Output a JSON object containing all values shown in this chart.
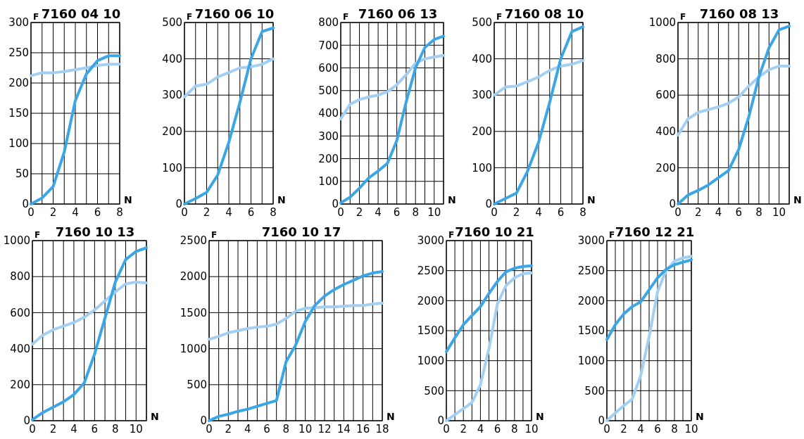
{
  "chart_data": [
    {
      "type": "line",
      "title": "7160 04 10",
      "xlabel": "N",
      "ylabel": "F",
      "x": [
        0,
        1,
        2,
        3,
        4,
        5,
        6,
        7,
        8
      ],
      "xlim": [
        0,
        8
      ],
      "xticks": [
        0,
        {
          "value": 1,
          "label": null
        },
        2,
        {
          "value": 3,
          "label": null
        },
        4,
        {
          "value": 5,
          "label": null
        },
        6,
        {
          "value": 7,
          "label": null
        },
        8
      ],
      "ylim": [
        0,
        300
      ],
      "yticks": [
        0,
        50,
        100,
        150,
        200,
        250,
        300
      ],
      "grid": true,
      "marker": "none",
      "series": [
        {
          "color": "#a3cff2",
          "values": [
            212,
            217,
            217,
            219,
            222,
            225,
            229,
            231,
            231
          ]
        },
        {
          "color": "#3aa6e6",
          "values": [
            0,
            10,
            29,
            86,
            171,
            215,
            237,
            245,
            245
          ]
        }
      ]
    },
    {
      "type": "line",
      "title": "7160 06 10",
      "xlabel": "N",
      "ylabel": "F",
      "x": [
        0,
        1,
        2,
        3,
        4,
        5,
        6,
        7,
        8
      ],
      "xlim": [
        0,
        8
      ],
      "xticks": [
        0,
        {
          "value": 1,
          "label": null
        },
        2,
        {
          "value": 3,
          "label": null
        },
        4,
        {
          "value": 5,
          "label": null
        },
        6,
        {
          "value": 7,
          "label": null
        },
        8
      ],
      "ylim": [
        0,
        500
      ],
      "yticks": [
        0,
        100,
        200,
        300,
        400,
        500
      ],
      "grid": true,
      "marker": "none",
      "series": [
        {
          "color": "#a3cff2",
          "values": [
            295,
            325,
            330,
            350,
            362,
            375,
            378,
            385,
            400
          ]
        },
        {
          "color": "#3aa6e6",
          "values": [
            0,
            15,
            32,
            80,
            170,
            280,
            400,
            475,
            485
          ]
        }
      ]
    },
    {
      "type": "line",
      "title": "7160 06 13",
      "xlabel": "N",
      "ylabel": "F",
      "x": [
        0,
        1,
        2,
        3,
        4,
        5,
        6,
        7,
        8,
        9,
        10,
        11
      ],
      "xlim": [
        0,
        11
      ],
      "xticks": [
        0,
        {
          "value": 1,
          "label": null
        },
        2,
        {
          "value": 3,
          "label": null
        },
        4,
        {
          "value": 5,
          "label": null
        },
        6,
        {
          "value": 7,
          "label": null
        },
        8,
        {
          "value": 9,
          "label": null
        },
        10,
        {
          "value": 11,
          "label": null
        }
      ],
      "ylim": [
        0,
        800
      ],
      "yticks": [
        0,
        100,
        200,
        300,
        400,
        500,
        600,
        700,
        800
      ],
      "grid": true,
      "marker": "none",
      "series": [
        {
          "color": "#a3cff2",
          "values": [
            375,
            440,
            460,
            472,
            480,
            495,
            525,
            570,
            620,
            640,
            648,
            655
          ]
        },
        {
          "color": "#3aa6e6",
          "values": [
            5,
            30,
            70,
            115,
            145,
            180,
            280,
            450,
            600,
            690,
            725,
            740
          ]
        }
      ]
    },
    {
      "type": "line",
      "title": "7160 08 10",
      "xlabel": "N",
      "ylabel": "F",
      "x": [
        0,
        1,
        2,
        3,
        4,
        5,
        6,
        7,
        8
      ],
      "xlim": [
        0,
        8
      ],
      "xticks": [
        0,
        {
          "value": 1,
          "label": null
        },
        2,
        {
          "value": 3,
          "label": null
        },
        4,
        {
          "value": 5,
          "label": null
        },
        6,
        {
          "value": 7,
          "label": null
        },
        8
      ],
      "ylim": [
        0,
        500
      ],
      "yticks": [
        0,
        100,
        200,
        300,
        400,
        500
      ],
      "grid": true,
      "marker": "none",
      "series": [
        {
          "color": "#a3cff2",
          "values": [
            300,
            322,
            325,
            337,
            350,
            368,
            380,
            385,
            395
          ]
        },
        {
          "color": "#3aa6e6",
          "values": [
            0,
            15,
            30,
            90,
            170,
            280,
            400,
            475,
            488
          ]
        }
      ]
    },
    {
      "type": "line",
      "title": "7160 08 13",
      "xlabel": "N",
      "ylabel": "F",
      "x": [
        0,
        1,
        2,
        3,
        4,
        5,
        6,
        7,
        8,
        9,
        10,
        11
      ],
      "xlim": [
        0,
        11
      ],
      "xticks": [
        0,
        {
          "value": 1,
          "label": null
        },
        2,
        {
          "value": 3,
          "label": null
        },
        4,
        {
          "value": 5,
          "label": null
        },
        6,
        {
          "value": 7,
          "label": null
        },
        8,
        {
          "value": 9,
          "label": null
        },
        10,
        {
          "value": 11,
          "label": null
        }
      ],
      "ylim": [
        0,
        1000
      ],
      "yticks": [
        0,
        200,
        400,
        600,
        800,
        1000
      ],
      "grid": true,
      "marker": "none",
      "series": [
        {
          "color": "#a3cff2",
          "values": [
            380,
            470,
            505,
            520,
            535,
            555,
            590,
            650,
            700,
            740,
            760,
            760
          ]
        },
        {
          "color": "#3aa6e6",
          "values": [
            0,
            50,
            75,
            105,
            145,
            185,
            300,
            480,
            700,
            860,
            960,
            980
          ]
        }
      ]
    },
    {
      "type": "line",
      "title": "7160 10 13",
      "xlabel": "N",
      "ylabel": "F",
      "x": [
        0,
        1,
        2,
        3,
        4,
        5,
        6,
        7,
        8,
        9,
        10,
        11
      ],
      "xlim": [
        0,
        11
      ],
      "xticks": [
        0,
        {
          "value": 1,
          "label": null
        },
        2,
        {
          "value": 3,
          "label": null
        },
        4,
        {
          "value": 5,
          "label": null
        },
        6,
        {
          "value": 7,
          "label": null
        },
        8,
        {
          "value": 9,
          "label": null
        },
        10,
        {
          "value": 11,
          "label": null
        }
      ],
      "ylim": [
        0,
        1000
      ],
      "yticks": [
        0,
        200,
        400,
        600,
        800,
        1000
      ],
      "grid": true,
      "marker": "none",
      "series": [
        {
          "color": "#a3cff2",
          "values": [
            425,
            475,
            505,
            525,
            545,
            575,
            615,
            665,
            715,
            760,
            770,
            765
          ]
        },
        {
          "color": "#3aa6e6",
          "values": [
            5,
            45,
            75,
            105,
            145,
            210,
            370,
            570,
            770,
            895,
            940,
            960
          ]
        }
      ]
    },
    {
      "type": "line",
      "title": "7160 10 17",
      "xlabel": "N",
      "ylabel": "F",
      "x": [
        0,
        1,
        2,
        3,
        4,
        5,
        6,
        7,
        8,
        9,
        10,
        11,
        12,
        13,
        14,
        15,
        16,
        17,
        18
      ],
      "xlim": [
        0,
        18
      ],
      "xticks": [
        0,
        {
          "value": 1,
          "label": null
        },
        2,
        {
          "value": 3,
          "label": null
        },
        4,
        {
          "value": 5,
          "label": null
        },
        6,
        {
          "value": 7,
          "label": null
        },
        8,
        {
          "value": 9,
          "label": null
        },
        10,
        {
          "value": 11,
          "label": null
        },
        12,
        {
          "value": 13,
          "label": null
        },
        14,
        {
          "value": 15,
          "label": null
        },
        16,
        {
          "value": 17,
          "label": null
        },
        18
      ],
      "ylim": [
        0,
        2500
      ],
      "yticks": [
        0,
        500,
        1000,
        1500,
        2000,
        2500
      ],
      "grid": true,
      "marker": "none",
      "series": [
        {
          "color": "#a3cff2",
          "values": [
            1130,
            1170,
            1220,
            1250,
            1280,
            1300,
            1310,
            1340,
            1420,
            1520,
            1560,
            1570,
            1580,
            1580,
            1590,
            1600,
            1600,
            1620,
            1630
          ]
        },
        {
          "color": "#3aa6e6",
          "values": [
            0,
            60,
            90,
            130,
            160,
            200,
            240,
            280,
            820,
            1050,
            1380,
            1600,
            1730,
            1820,
            1890,
            1950,
            2010,
            2050,
            2070
          ]
        }
      ]
    },
    {
      "type": "line",
      "title": "7160 10 21",
      "xlabel": "N",
      "ylabel": "F",
      "x": [
        0,
        1,
        2,
        3,
        4,
        5,
        6,
        7,
        8,
        9,
        10
      ],
      "xlim": [
        0,
        10
      ],
      "xticks": [
        0,
        {
          "value": 1,
          "label": null
        },
        2,
        {
          "value": 3,
          "label": null
        },
        4,
        {
          "value": 5,
          "label": null
        },
        6,
        {
          "value": 7,
          "label": null
        },
        8,
        {
          "value": 9,
          "label": null
        },
        10
      ],
      "ylim": [
        0,
        3000
      ],
      "yticks": [
        0,
        500,
        1000,
        1500,
        2000,
        2500,
        3000
      ],
      "grid": true,
      "marker": "none",
      "series": [
        {
          "color": "#a3cff2",
          "values": [
            0,
            100,
            200,
            300,
            600,
            1200,
            1950,
            2250,
            2380,
            2450,
            2460
          ]
        },
        {
          "color": "#3aa6e6",
          "values": [
            1150,
            1380,
            1600,
            1750,
            1900,
            2120,
            2320,
            2480,
            2540,
            2570,
            2580
          ]
        }
      ]
    },
    {
      "type": "line",
      "title": "7160 12 21",
      "xlabel": "N",
      "ylabel": "F",
      "x": [
        0,
        1,
        2,
        3,
        4,
        5,
        6,
        7,
        8,
        9,
        10
      ],
      "xlim": [
        0,
        10
      ],
      "xticks": [
        0,
        {
          "value": 1,
          "label": null
        },
        2,
        {
          "value": 3,
          "label": null
        },
        4,
        {
          "value": 5,
          "label": null
        },
        6,
        {
          "value": 7,
          "label": null
        },
        8,
        {
          "value": 9,
          "label": null
        },
        10
      ],
      "ylim": [
        0,
        3000
      ],
      "yticks": [
        0,
        500,
        1000,
        1500,
        2000,
        2500,
        3000
      ],
      "grid": true,
      "marker": "none",
      "series": [
        {
          "color": "#a3cff2",
          "values": [
            0,
            130,
            250,
            360,
            750,
            1400,
            2150,
            2500,
            2660,
            2710,
            2740
          ]
        },
        {
          "color": "#3aa6e6",
          "values": [
            1350,
            1600,
            1780,
            1900,
            1980,
            2180,
            2380,
            2520,
            2600,
            2640,
            2680
          ]
        }
      ]
    }
  ]
}
